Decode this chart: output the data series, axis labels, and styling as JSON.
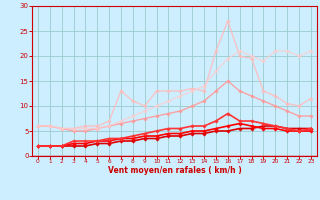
{
  "xlabel": "Vent moyen/en rafales ( km/h )",
  "xlim": [
    -0.5,
    23.5
  ],
  "ylim": [
    0,
    30
  ],
  "xticks": [
    0,
    1,
    2,
    3,
    4,
    5,
    6,
    7,
    8,
    9,
    10,
    11,
    12,
    13,
    14,
    15,
    16,
    17,
    18,
    19,
    20,
    21,
    22,
    23
  ],
  "yticks": [
    0,
    5,
    10,
    15,
    20,
    25,
    30
  ],
  "bg_color": "#cceeff",
  "grid_color": "#99cccc",
  "lines": [
    {
      "x": [
        0,
        1,
        2,
        3,
        4,
        5,
        6,
        7,
        8,
        9,
        10,
        11,
        12,
        13,
        14,
        15,
        16,
        17,
        18,
        19,
        20,
        21,
        22,
        23
      ],
      "y": [
        2,
        2,
        2,
        2,
        2,
        2.5,
        2.5,
        3,
        3,
        3.5,
        3.5,
        4,
        4,
        4.5,
        4.5,
        5,
        5,
        5.5,
        5.5,
        6,
        6,
        5.5,
        5.5,
        5.5
      ],
      "color": "#dd0000",
      "lw": 1.2,
      "marker": "D",
      "ms": 1.8,
      "alpha": 1.0
    },
    {
      "x": [
        0,
        1,
        2,
        3,
        4,
        5,
        6,
        7,
        8,
        9,
        10,
        11,
        12,
        13,
        14,
        15,
        16,
        17,
        18,
        19,
        20,
        21,
        22,
        23
      ],
      "y": [
        2,
        2,
        2,
        2.5,
        2.5,
        3,
        3,
        3.5,
        3.5,
        4,
        4,
        4.5,
        4.5,
        5,
        5,
        5.5,
        6,
        6.5,
        6,
        5.5,
        5.5,
        5,
        5,
        5
      ],
      "color": "#ff0000",
      "lw": 1.2,
      "marker": "D",
      "ms": 1.8,
      "alpha": 1.0
    },
    {
      "x": [
        0,
        1,
        2,
        3,
        4,
        5,
        6,
        7,
        8,
        9,
        10,
        11,
        12,
        13,
        14,
        15,
        16,
        17,
        18,
        19,
        20,
        21,
        22,
        23
      ],
      "y": [
        2,
        2,
        2,
        3,
        3,
        3,
        3.5,
        3.5,
        4,
        4.5,
        5,
        5.5,
        5.5,
        6,
        6,
        7,
        8.5,
        7,
        7,
        6.5,
        6,
        5.5,
        5,
        5.5
      ],
      "color": "#ff3333",
      "lw": 1.2,
      "marker": "D",
      "ms": 1.8,
      "alpha": 1.0
    },
    {
      "x": [
        0,
        1,
        2,
        3,
        4,
        5,
        6,
        7,
        8,
        9,
        10,
        11,
        12,
        13,
        14,
        15,
        16,
        17,
        18,
        19,
        20,
        21,
        22,
        23
      ],
      "y": [
        6,
        6,
        5.5,
        5,
        5,
        5.5,
        6,
        6.5,
        7,
        7.5,
        8,
        8.5,
        9,
        10,
        11,
        13,
        15,
        13,
        12,
        11,
        10,
        9,
        8,
        8
      ],
      "color": "#ff9999",
      "lw": 1.0,
      "marker": "D",
      "ms": 1.8,
      "alpha": 0.9
    },
    {
      "x": [
        0,
        1,
        2,
        3,
        4,
        5,
        6,
        7,
        8,
        9,
        10,
        11,
        12,
        13,
        14,
        15,
        16,
        17,
        18,
        19,
        20,
        21,
        22,
        23
      ],
      "y": [
        6,
        6,
        5.5,
        5.5,
        6,
        6,
        7,
        13,
        11,
        10,
        13,
        13,
        13,
        13.5,
        13,
        21,
        27,
        20,
        19.5,
        13,
        12,
        10.5,
        10,
        11.5
      ],
      "color": "#ffbbbb",
      "lw": 1.0,
      "marker": "D",
      "ms": 1.8,
      "alpha": 0.85
    },
    {
      "x": [
        0,
        1,
        2,
        3,
        4,
        5,
        6,
        7,
        8,
        9,
        10,
        11,
        12,
        13,
        14,
        15,
        16,
        17,
        18,
        19,
        20,
        21,
        22,
        23
      ],
      "y": [
        6,
        6,
        5.5,
        5.5,
        5.5,
        5.5,
        6,
        7,
        8,
        9,
        10,
        11,
        12,
        13,
        14,
        17,
        19.5,
        21,
        20,
        19,
        21,
        21,
        20,
        21
      ],
      "color": "#ffcccc",
      "lw": 1.0,
      "marker": "D",
      "ms": 1.8,
      "alpha": 0.75
    }
  ]
}
